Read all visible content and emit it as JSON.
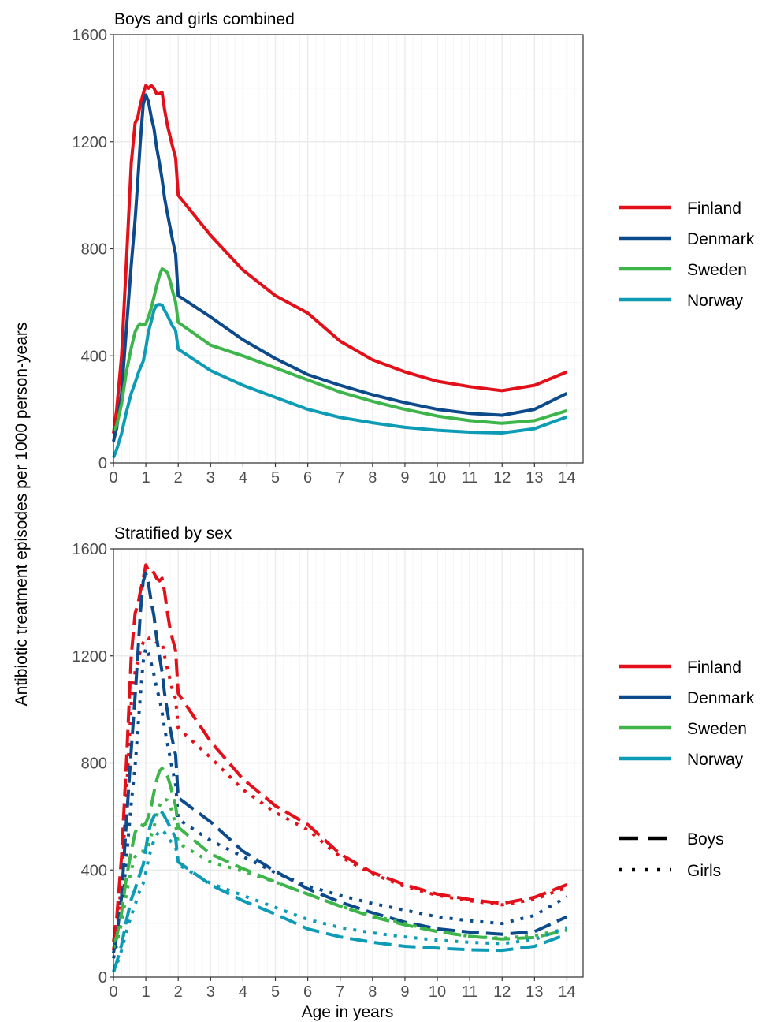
{
  "figure": {
    "ylabel": "Antibiotic treatment episodes per 1000 person-years",
    "xlabel": "Age in years"
  },
  "colors": {
    "Finland": "#e3101a",
    "Denmark": "#0d4a8c",
    "Sweden": "#3db54a",
    "Norway": "#0d9bb5"
  },
  "legend": {
    "countries": [
      "Finland",
      "Denmark",
      "Sweden",
      "Norway"
    ],
    "sex": [
      {
        "label": "Boys",
        "linetype": "dashed"
      },
      {
        "label": "Girls",
        "linetype": "dotted"
      }
    ]
  },
  "chart_data": [
    {
      "type": "line",
      "title": "Boys and girls combined",
      "xlim": [
        0,
        14.5
      ],
      "ylim": [
        0,
        1600
      ],
      "xticks": [
        0,
        1,
        2,
        3,
        4,
        5,
        6,
        7,
        8,
        9,
        10,
        11,
        12,
        13,
        14
      ],
      "yticks": [
        0,
        400,
        800,
        1200,
        1600
      ],
      "grid": true,
      "legend_position": "right",
      "series": [
        {
          "name": "Finland",
          "linetype": "solid",
          "x": [
            0,
            0.1,
            0.25,
            0.4,
            0.55,
            0.67,
            0.75,
            0.83,
            0.92,
            1,
            1.08,
            1.17,
            1.25,
            1.33,
            1.42,
            1.5,
            1.58,
            1.67,
            1.75,
            1.83,
            1.92,
            2,
            3,
            4,
            5,
            6,
            7,
            8,
            9,
            10,
            11,
            12,
            13,
            14
          ],
          "y": [
            110,
            200,
            400,
            750,
            1120,
            1270,
            1290,
            1340,
            1380,
            1410,
            1400,
            1410,
            1400,
            1380,
            1380,
            1385,
            1320,
            1260,
            1220,
            1180,
            1140,
            1000,
            850,
            720,
            625,
            560,
            455,
            385,
            340,
            305,
            285,
            270,
            290,
            340
          ]
        },
        {
          "name": "Denmark",
          "linetype": "solid",
          "x": [
            0,
            0.1,
            0.25,
            0.4,
            0.55,
            0.67,
            0.75,
            0.83,
            0.92,
            1,
            1.08,
            1.17,
            1.25,
            1.33,
            1.42,
            1.5,
            1.58,
            1.67,
            1.75,
            1.83,
            1.92,
            2,
            3,
            4,
            5,
            6,
            7,
            8,
            9,
            10,
            11,
            12,
            13,
            14
          ],
          "y": [
            80,
            130,
            260,
            500,
            740,
            910,
            1050,
            1200,
            1340,
            1375,
            1350,
            1290,
            1250,
            1180,
            1120,
            1060,
            990,
            930,
            880,
            830,
            780,
            625,
            545,
            460,
            390,
            330,
            290,
            255,
            225,
            200,
            185,
            178,
            200,
            260
          ]
        },
        {
          "name": "Sweden",
          "linetype": "solid",
          "x": [
            0,
            0.1,
            0.25,
            0.4,
            0.55,
            0.67,
            0.75,
            0.83,
            0.92,
            1,
            1.08,
            1.17,
            1.25,
            1.33,
            1.42,
            1.5,
            1.58,
            1.67,
            1.75,
            1.83,
            1.92,
            2,
            3,
            4,
            5,
            6,
            7,
            8,
            9,
            10,
            11,
            12,
            13,
            14
          ],
          "y": [
            120,
            140,
            220,
            340,
            430,
            490,
            510,
            520,
            515,
            520,
            545,
            580,
            620,
            660,
            700,
            725,
            720,
            710,
            680,
            640,
            600,
            525,
            440,
            400,
            355,
            310,
            265,
            230,
            200,
            175,
            158,
            148,
            158,
            195
          ]
        },
        {
          "name": "Norway",
          "linetype": "solid",
          "x": [
            0,
            0.1,
            0.25,
            0.4,
            0.55,
            0.67,
            0.75,
            0.83,
            0.92,
            1,
            1.08,
            1.17,
            1.25,
            1.33,
            1.42,
            1.5,
            1.58,
            1.67,
            1.75,
            1.83,
            1.92,
            2,
            3,
            4,
            5,
            6,
            7,
            8,
            9,
            10,
            11,
            12,
            13,
            14
          ],
          "y": [
            20,
            50,
            110,
            190,
            260,
            300,
            330,
            355,
            380,
            430,
            490,
            530,
            570,
            590,
            592,
            590,
            570,
            550,
            530,
            510,
            495,
            425,
            345,
            290,
            245,
            200,
            170,
            150,
            133,
            122,
            115,
            112,
            128,
            172
          ]
        }
      ]
    },
    {
      "type": "line",
      "title": "Stratified by sex",
      "xlim": [
        0,
        14.5
      ],
      "ylim": [
        0,
        1600
      ],
      "xticks": [
        0,
        1,
        2,
        3,
        4,
        5,
        6,
        7,
        8,
        9,
        10,
        11,
        12,
        13,
        14
      ],
      "yticks": [
        0,
        400,
        800,
        1200,
        1600
      ],
      "grid": true,
      "legend_position": "right",
      "series": [
        {
          "name": "Finland",
          "sex": "Boys",
          "linetype": "dashed",
          "x": [
            0,
            0.1,
            0.25,
            0.4,
            0.55,
            0.67,
            0.75,
            0.83,
            0.92,
            1,
            1.08,
            1.17,
            1.25,
            1.33,
            1.42,
            1.5,
            1.58,
            1.67,
            1.75,
            1.83,
            1.92,
            2,
            3,
            4,
            5,
            6,
            7,
            8,
            9,
            10,
            11,
            12,
            13,
            14
          ],
          "y": [
            130,
            220,
            450,
            800,
            1200,
            1360,
            1390,
            1440,
            1490,
            1540,
            1520,
            1525,
            1510,
            1490,
            1480,
            1490,
            1440,
            1360,
            1300,
            1260,
            1220,
            1060,
            880,
            740,
            640,
            570,
            460,
            390,
            345,
            310,
            290,
            275,
            298,
            345
          ]
        },
        {
          "name": "Finland",
          "sex": "Girls",
          "linetype": "dotted",
          "x": [
            0,
            0.1,
            0.25,
            0.4,
            0.55,
            0.67,
            0.75,
            0.83,
            0.92,
            1,
            1.08,
            1.17,
            1.25,
            1.33,
            1.42,
            1.5,
            1.58,
            1.67,
            1.75,
            1.83,
            1.92,
            2,
            3,
            4,
            5,
            6,
            7,
            8,
            9,
            10,
            11,
            12,
            13,
            14
          ],
          "y": [
            100,
            180,
            350,
            680,
            1020,
            1140,
            1180,
            1220,
            1250,
            1270,
            1265,
            1270,
            1260,
            1250,
            1250,
            1250,
            1200,
            1150,
            1110,
            1070,
            1040,
            930,
            820,
            700,
            615,
            550,
            450,
            385,
            338,
            305,
            285,
            270,
            290,
            335
          ]
        },
        {
          "name": "Denmark",
          "sex": "Boys",
          "linetype": "dashed",
          "x": [
            0,
            0.1,
            0.25,
            0.4,
            0.55,
            0.67,
            0.75,
            0.83,
            0.92,
            1,
            1.08,
            1.17,
            1.25,
            1.33,
            1.42,
            1.5,
            1.58,
            1.67,
            1.75,
            1.83,
            1.92,
            2,
            3,
            4,
            5,
            6,
            7,
            8,
            9,
            10,
            11,
            12,
            13,
            14
          ],
          "y": [
            90,
            150,
            300,
            580,
            850,
            1050,
            1200,
            1360,
            1480,
            1510,
            1470,
            1400,
            1350,
            1270,
            1200,
            1140,
            1060,
            990,
            930,
            880,
            830,
            670,
            580,
            470,
            395,
            330,
            280,
            240,
            205,
            180,
            168,
            160,
            170,
            225
          ]
        },
        {
          "name": "Denmark",
          "sex": "Girls",
          "linetype": "dotted",
          "x": [
            0,
            0.1,
            0.25,
            0.4,
            0.55,
            0.67,
            0.75,
            0.83,
            0.92,
            1,
            1.08,
            1.17,
            1.25,
            1.33,
            1.42,
            1.5,
            1.58,
            1.67,
            1.75,
            1.83,
            1.92,
            2,
            3,
            4,
            5,
            6,
            7,
            8,
            9,
            10,
            11,
            12,
            13,
            14
          ],
          "y": [
            70,
            120,
            230,
            440,
            650,
            790,
            920,
            1050,
            1180,
            1230,
            1210,
            1170,
            1130,
            1080,
            1040,
            990,
            930,
            870,
            820,
            770,
            720,
            590,
            510,
            450,
            390,
            340,
            305,
            275,
            250,
            225,
            210,
            200,
            230,
            300
          ]
        },
        {
          "name": "Sweden",
          "sex": "Boys",
          "linetype": "dashed",
          "x": [
            0,
            0.1,
            0.25,
            0.4,
            0.55,
            0.67,
            0.75,
            0.83,
            0.92,
            1,
            1.08,
            1.17,
            1.25,
            1.33,
            1.42,
            1.5,
            1.58,
            1.67,
            1.75,
            1.83,
            1.92,
            2,
            3,
            4,
            5,
            6,
            7,
            8,
            9,
            10,
            11,
            12,
            13,
            14
          ],
          "y": [
            130,
            150,
            240,
            370,
            470,
            540,
            560,
            570,
            565,
            575,
            600,
            640,
            690,
            735,
            770,
            780,
            770,
            750,
            720,
            680,
            640,
            560,
            460,
            405,
            355,
            310,
            265,
            225,
            195,
            170,
            152,
            142,
            148,
            175
          ]
        },
        {
          "name": "Sweden",
          "sex": "Girls",
          "linetype": "dotted",
          "x": [
            0,
            0.1,
            0.25,
            0.4,
            0.55,
            0.67,
            0.75,
            0.83,
            0.92,
            1,
            1.08,
            1.17,
            1.25,
            1.33,
            1.42,
            1.5,
            1.58,
            1.67,
            1.75,
            1.83,
            1.92,
            2,
            3,
            4,
            5,
            6,
            7,
            8,
            9,
            10,
            11,
            12,
            13,
            14
          ],
          "y": [
            110,
            130,
            200,
            310,
            400,
            450,
            460,
            470,
            470,
            470,
            490,
            530,
            560,
            600,
            640,
            660,
            665,
            660,
            640,
            610,
            570,
            500,
            430,
            395,
            355,
            310,
            265,
            230,
            200,
            170,
            152,
            145,
            155,
            180
          ]
        },
        {
          "name": "Norway",
          "sex": "Boys",
          "linetype": "dashed",
          "x": [
            0,
            0.1,
            0.25,
            0.4,
            0.55,
            0.67,
            0.75,
            0.83,
            0.92,
            1,
            1.08,
            1.17,
            1.25,
            1.33,
            1.42,
            1.5,
            1.58,
            1.67,
            1.75,
            1.83,
            1.92,
            2,
            3,
            4,
            5,
            6,
            7,
            8,
            9,
            10,
            11,
            12,
            13,
            14
          ],
          "y": [
            20,
            55,
            120,
            210,
            290,
            330,
            360,
            390,
            420,
            480,
            540,
            580,
            600,
            620,
            620,
            615,
            600,
            580,
            560,
            540,
            520,
            430,
            345,
            285,
            235,
            180,
            150,
            130,
            115,
            108,
            102,
            100,
            115,
            160
          ]
        },
        {
          "name": "Norway",
          "sex": "Girls",
          "linetype": "dotted",
          "x": [
            0,
            0.1,
            0.25,
            0.4,
            0.55,
            0.67,
            0.75,
            0.83,
            0.92,
            1,
            1.08,
            1.17,
            1.25,
            1.33,
            1.42,
            1.5,
            1.58,
            1.67,
            1.75,
            1.83,
            1.92,
            2,
            3,
            4,
            5,
            6,
            7,
            8,
            9,
            10,
            11,
            12,
            13,
            14
          ],
          "y": [
            20,
            45,
            100,
            170,
            230,
            270,
            300,
            330,
            350,
            390,
            440,
            480,
            510,
            530,
            545,
            550,
            540,
            525,
            510,
            500,
            490,
            420,
            350,
            305,
            260,
            215,
            185,
            165,
            150,
            138,
            130,
            125,
            140,
            185
          ]
        }
      ]
    }
  ]
}
